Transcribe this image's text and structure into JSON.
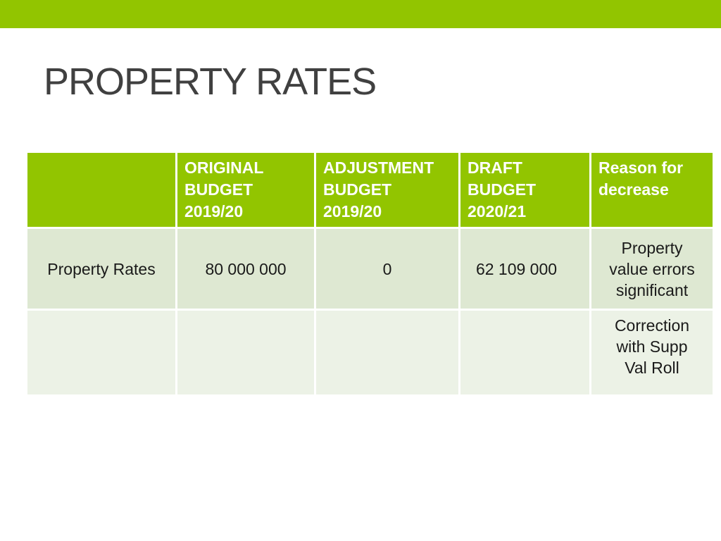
{
  "slide": {
    "title": "PROPERTY RATES",
    "accent_color": "#92c500",
    "header_cell_color": "#92c500",
    "row_color_1": "#dee8d2",
    "row_color_2": "#ecf2e6",
    "title_color": "#404040"
  },
  "table": {
    "headers": [
      {
        "line1": "",
        "line2": "",
        "line3": ""
      },
      {
        "line1": "ORIGINAL",
        "line2": "BUDGET",
        "line3": "2019/20"
      },
      {
        "line1": "ADJUSTMENT",
        "line2": "BUDGET",
        "line3": "2019/20"
      },
      {
        "line1": "DRAFT",
        "line2": "BUDGET",
        "line3": "2020/21"
      },
      {
        "line1": "Reason for",
        "line2": "decrease",
        "line3": ""
      }
    ],
    "rows": [
      {
        "label": "Property Rates",
        "original": "80 000 000",
        "adjustment": "0",
        "draft": "62 109 000",
        "reason_lines": [
          "Property",
          "value errors",
          "significant"
        ]
      },
      {
        "label": "",
        "original": "",
        "adjustment": "",
        "draft": "",
        "reason_lines": [
          "Correction",
          "with Supp",
          "Val Roll"
        ]
      }
    ]
  }
}
